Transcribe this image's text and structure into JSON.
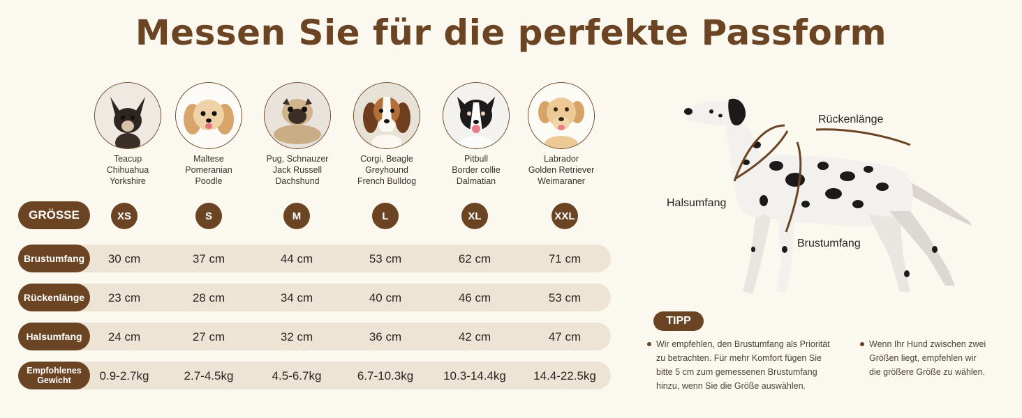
{
  "title": "Messen Sie für die perfekte Passform",
  "dogs": [
    {
      "icon": "chihuahua-photo",
      "breeds": [
        "Teacup",
        "Chihuahua",
        "Yorkshire"
      ]
    },
    {
      "icon": "maltese-photo",
      "breeds": [
        "Maltese",
        "Pomeranian",
        "Poodle"
      ]
    },
    {
      "icon": "pug-photo",
      "breeds": [
        "Pug, Schnauzer",
        "Jack Russell",
        "Dachshund"
      ]
    },
    {
      "icon": "beagle-photo",
      "breeds": [
        "Corgi, Beagle",
        "Greyhound",
        "French Bulldog"
      ]
    },
    {
      "icon": "border-collie-photo",
      "breeds": [
        "Pitbull",
        "Border collie",
        "Dalmatian"
      ]
    },
    {
      "icon": "labrador-photo",
      "breeds": [
        "Labrador",
        "Golden Retriever",
        "Weimaraner"
      ]
    }
  ],
  "size_label": "GRÖSSE",
  "sizes": [
    "XS",
    "S",
    "M",
    "L",
    "XL",
    "XXL"
  ],
  "rows": [
    {
      "label": "Brustumfang",
      "values": [
        "30 cm",
        "37 cm",
        "44 cm",
        "53 cm",
        "62 cm",
        "71 cm"
      ]
    },
    {
      "label": "Rückenlänge",
      "values": [
        "23 cm",
        "28 cm",
        "34 cm",
        "40 cm",
        "46 cm",
        "53 cm"
      ]
    },
    {
      "label": "Halsumfang",
      "values": [
        "24 cm",
        "27 cm",
        "32 cm",
        "36 cm",
        "42 cm",
        "47 cm"
      ]
    },
    {
      "label": "Empfohlenes Gewicht",
      "values": [
        "0.9-2.7kg",
        "2.7-4.5kg",
        "4.5-6.7kg",
        "6.7-10.3kg",
        "10.3-14.4kg",
        "14.4-22.5kg"
      ]
    }
  ],
  "diagram": {
    "back_length": "Rückenlänge",
    "neck": "Halsumfang",
    "chest": "Brustumfang"
  },
  "tip": {
    "label": "TIPP",
    "left_lines": [
      "Wir empfehlen, den Brustumfang als Priorität",
      "zu betrachten. Für mehr Komfort fügen Sie",
      "bitte 5 cm zum gemessenen Brustumfang",
      "hinzu, wenn Sie die Größe auswählen."
    ],
    "right_lines": [
      "Wenn Ihr Hund zwischen zwei",
      "Größen liegt, empfehlen wir",
      "die größere Größe zu wählen."
    ]
  },
  "colors": {
    "brown": "#6b4423",
    "band": "#ede4d6",
    "background": "#fbf8ef"
  }
}
